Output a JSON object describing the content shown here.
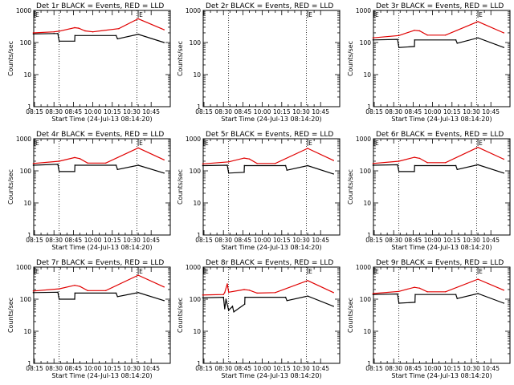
{
  "chart_data": [
    {
      "type": "line",
      "title": "Det 1r BLACK = Events, RED = LLD",
      "xlabel": "Start Time (24-Jul-13 08:14:20)",
      "ylabel": "Counts/sec",
      "yscale": "log",
      "ylim": [
        1,
        1000
      ],
      "xlim": [
        "08:14",
        "10:55"
      ],
      "xticks": [
        "08:15",
        "08:30",
        "08:45",
        "10:00",
        "10:15",
        "10:30",
        "10:45"
      ],
      "yticks": [
        "1",
        "10",
        "100",
        "1000"
      ],
      "vlines": [
        "08:34",
        "10:34"
      ],
      "markers": [
        {
          "x": "08:14",
          "label": "E"
        },
        {
          "x": "10:35",
          "label": "E"
        }
      ],
      "series": [
        {
          "color": "#000000",
          "x": [
            "08:14",
            "08:30",
            "08:33",
            "08:34",
            "08:50",
            "08:51",
            "10:18",
            "10:19",
            "10:35",
            "10:55"
          ],
          "values": [
            185,
            190,
            190,
            110,
            110,
            165,
            165,
            130,
            180,
            100
          ]
        },
        {
          "color": "#e00000",
          "x": [
            "08:14",
            "08:30",
            "08:34",
            "08:50",
            "09:05",
            "09:30",
            "10:00",
            "10:20",
            "10:35",
            "10:55"
          ],
          "values": [
            200,
            215,
            225,
            290,
            280,
            230,
            215,
            270,
            550,
            250
          ]
        }
      ]
    },
    {
      "type": "line",
      "title": "Det 2r BLACK = Events, RED = LLD",
      "xlabel": "Start Time (24-Jul-13 08:14:20)",
      "ylabel": "Counts/sec",
      "yscale": "log",
      "ylim": [
        1,
        1000
      ],
      "xlim": [
        "08:14",
        "10:55"
      ],
      "xticks": [
        "08:15",
        "08:30",
        "08:45",
        "10:00",
        "10:15",
        "10:30",
        "10:45"
      ],
      "yticks": [
        "1",
        "10",
        "100",
        "1000"
      ],
      "vlines": [
        "08:34",
        "10:34"
      ],
      "markers": [
        {
          "x": "10:35",
          "label": "E"
        }
      ],
      "series": []
    },
    {
      "type": "line",
      "title": "Det 3r BLACK = Events, RED = LLD",
      "xlabel": "Start Time (24-Jul-13 08:14:20)",
      "ylabel": "Counts/sec",
      "yscale": "log",
      "ylim": [
        1,
        1000
      ],
      "xlim": [
        "08:14",
        "10:55"
      ],
      "xticks": [
        "08:15",
        "08:30",
        "08:45",
        "10:00",
        "10:15",
        "10:30",
        "10:45"
      ],
      "yticks": [
        "1",
        "10",
        "100",
        "1000"
      ],
      "vlines": [
        "08:34",
        "10:34"
      ],
      "markers": [
        {
          "x": "08:14",
          "label": "E"
        },
        {
          "x": "10:35",
          "label": "E"
        }
      ],
      "series": [
        {
          "color": "#000000",
          "x": [
            "08:14",
            "08:33",
            "08:34",
            "08:50",
            "08:51",
            "10:18",
            "10:19",
            "10:35",
            "10:55"
          ],
          "values": [
            120,
            125,
            70,
            75,
            120,
            120,
            95,
            140,
            70
          ]
        },
        {
          "color": "#e00000",
          "x": [
            "08:14",
            "08:34",
            "08:50",
            "09:10",
            "09:40",
            "10:10",
            "10:35",
            "10:55"
          ],
          "values": [
            140,
            165,
            240,
            230,
            170,
            170,
            450,
            200
          ]
        }
      ]
    },
    {
      "type": "line",
      "title": "Det 4r BLACK = Events, RED = LLD",
      "xlabel": "Start Time (24-Jul-13 08:14:20)",
      "ylabel": "Counts/sec",
      "yscale": "log",
      "ylim": [
        1,
        1000
      ],
      "xlim": [
        "08:14",
        "10:55"
      ],
      "xticks": [
        "08:15",
        "08:30",
        "08:45",
        "10:00",
        "10:15",
        "10:30",
        "10:45"
      ],
      "yticks": [
        "1",
        "10",
        "100",
        "1000"
      ],
      "vlines": [
        "08:34",
        "10:34"
      ],
      "markers": [
        {
          "x": "08:14",
          "label": "E"
        },
        {
          "x": "10:35",
          "label": "E"
        }
      ],
      "series": [
        {
          "color": "#000000",
          "x": [
            "08:14",
            "08:33",
            "08:34",
            "08:50",
            "08:51",
            "10:18",
            "10:19",
            "10:35",
            "10:55"
          ],
          "values": [
            150,
            160,
            95,
            95,
            150,
            150,
            110,
            150,
            85
          ]
        },
        {
          "color": "#e00000",
          "x": [
            "08:14",
            "08:34",
            "08:50",
            "09:10",
            "09:40",
            "10:10",
            "10:35",
            "10:55"
          ],
          "values": [
            170,
            200,
            260,
            240,
            175,
            175,
            520,
            220
          ]
        }
      ]
    },
    {
      "type": "line",
      "title": "Det 5r BLACK = Events, RED = LLD",
      "xlabel": "Start Time (24-Jul-13 08:14:20)",
      "ylabel": "Counts/sec",
      "yscale": "log",
      "ylim": [
        1,
        1000
      ],
      "xlim": [
        "08:14",
        "10:55"
      ],
      "xticks": [
        "08:15",
        "08:30",
        "08:45",
        "10:00",
        "10:15",
        "10:30",
        "10:45"
      ],
      "yticks": [
        "1",
        "10",
        "100",
        "1000"
      ],
      "vlines": [
        "08:34",
        "10:34"
      ],
      "markers": [
        {
          "x": "08:14",
          "label": "E"
        },
        {
          "x": "10:35",
          "label": "E"
        }
      ],
      "series": [
        {
          "color": "#000000",
          "x": [
            "08:14",
            "08:33",
            "08:34",
            "08:50",
            "08:51",
            "10:18",
            "10:19",
            "10:35",
            "10:55"
          ],
          "values": [
            145,
            150,
            85,
            90,
            145,
            145,
            105,
            145,
            80
          ]
        },
        {
          "color": "#e00000",
          "x": [
            "08:14",
            "08:34",
            "08:50",
            "09:10",
            "09:40",
            "10:10",
            "10:35",
            "10:55"
          ],
          "values": [
            165,
            190,
            250,
            235,
            170,
            170,
            500,
            210
          ]
        }
      ]
    },
    {
      "type": "line",
      "title": "Det 6r BLACK = Events, RED = LLD",
      "xlabel": "Start Time (24-Jul-13 08:14:20)",
      "ylabel": "Counts/sec",
      "yscale": "log",
      "ylim": [
        1,
        1000
      ],
      "xlim": [
        "08:14",
        "10:55"
      ],
      "xticks": [
        "08:15",
        "08:30",
        "08:45",
        "10:00",
        "10:15",
        "10:30",
        "10:45"
      ],
      "yticks": [
        "1",
        "10",
        "100",
        "1000"
      ],
      "vlines": [
        "08:34",
        "10:34"
      ],
      "markers": [
        {
          "x": "08:14",
          "label": "E"
        },
        {
          "x": "10:35",
          "label": "E"
        }
      ],
      "series": [
        {
          "color": "#000000",
          "x": [
            "08:14",
            "08:33",
            "08:34",
            "08:50",
            "08:51",
            "10:18",
            "10:19",
            "10:35",
            "10:55"
          ],
          "values": [
            150,
            155,
            95,
            95,
            145,
            145,
            110,
            155,
            85
          ]
        },
        {
          "color": "#e00000",
          "x": [
            "08:14",
            "08:34",
            "08:50",
            "09:10",
            "09:40",
            "10:10",
            "10:35",
            "10:55"
          ],
          "values": [
            170,
            200,
            265,
            245,
            180,
            180,
            540,
            230
          ]
        }
      ]
    },
    {
      "type": "line",
      "title": "Det 7r BLACK = Events, RED = LLD",
      "xlabel": "Start Time (24-Jul-13 08:14:20)",
      "ylabel": "Counts/sec",
      "yscale": "log",
      "ylim": [
        1,
        1000
      ],
      "xlim": [
        "08:14",
        "10:55"
      ],
      "xticks": [
        "08:15",
        "08:30",
        "08:45",
        "10:00",
        "10:15",
        "10:30",
        "10:45"
      ],
      "yticks": [
        "1",
        "10",
        "100",
        "1000"
      ],
      "vlines": [
        "08:34",
        "10:34"
      ],
      "markers": [
        {
          "x": "08:14",
          "label": "E"
        },
        {
          "x": "10:35",
          "label": "E"
        }
      ],
      "series": [
        {
          "color": "#000000",
          "x": [
            "08:14",
            "08:33",
            "08:34",
            "08:50",
            "08:51",
            "10:18",
            "10:19",
            "10:35",
            "10:55"
          ],
          "values": [
            160,
            165,
            100,
            100,
            155,
            155,
            120,
            160,
            90
          ]
        },
        {
          "color": "#e00000",
          "x": [
            "08:14",
            "08:34",
            "08:50",
            "09:10",
            "09:40",
            "10:10",
            "10:35",
            "10:55"
          ],
          "values": [
            180,
            210,
            270,
            250,
            185,
            185,
            560,
            240
          ]
        }
      ]
    },
    {
      "type": "line",
      "title": "Det 8r BLACK = Events, RED = LLD",
      "xlabel": "Start Time (24-Jul-13 08:14:20)",
      "ylabel": "Counts/sec",
      "yscale": "log",
      "ylim": [
        1,
        1000
      ],
      "xlim": [
        "08:14",
        "10:55"
      ],
      "xticks": [
        "08:15",
        "08:30",
        "08:45",
        "10:00",
        "10:15",
        "10:30",
        "10:45"
      ],
      "yticks": [
        "1",
        "10",
        "100",
        "1000"
      ],
      "vlines": [
        "08:34",
        "10:34"
      ],
      "markers": [
        {
          "x": "08:14",
          "label": "E"
        },
        {
          "x": "10:35",
          "label": "E"
        }
      ],
      "series": [
        {
          "color": "#000000",
          "x": [
            "08:14",
            "08:30",
            "08:31",
            "08:32",
            "08:34",
            "08:37",
            "08:38",
            "08:52",
            "08:53",
            "10:18",
            "10:19",
            "10:35",
            "10:55"
          ],
          "values": [
            110,
            115,
            50,
            100,
            45,
            60,
            40,
            70,
            115,
            115,
            90,
            125,
            60
          ]
        },
        {
          "color": "#e00000",
          "x": [
            "08:14",
            "08:30",
            "08:31",
            "08:33",
            "08:34",
            "08:50",
            "09:10",
            "09:40",
            "10:10",
            "10:35",
            "10:55"
          ],
          "values": [
            135,
            140,
            160,
            300,
            165,
            200,
            190,
            155,
            160,
            380,
            160
          ]
        }
      ]
    },
    {
      "type": "line",
      "title": "Det 9r BLACK = Events, RED = LLD",
      "xlabel": "Start Time (24-Jul-13 08:14:20)",
      "ylabel": "Counts/sec",
      "yscale": "log",
      "ylim": [
        1,
        1000
      ],
      "xlim": [
        "08:14",
        "10:55"
      ],
      "xticks": [
        "08:15",
        "08:30",
        "08:45",
        "10:00",
        "10:15",
        "10:30",
        "10:45"
      ],
      "yticks": [
        "1",
        "10",
        "100",
        "1000"
      ],
      "vlines": [
        "08:34",
        "10:34"
      ],
      "markers": [
        {
          "x": "08:14",
          "label": "E"
        },
        {
          "x": "10:35",
          "label": "E"
        }
      ],
      "series": [
        {
          "color": "#000000",
          "x": [
            "08:14",
            "08:33",
            "08:34",
            "08:52",
            "08:53",
            "10:18",
            "10:19",
            "10:35",
            "10:55"
          ],
          "values": [
            140,
            145,
            75,
            80,
            140,
            140,
            105,
            150,
            75
          ]
        },
        {
          "color": "#e00000",
          "x": [
            "08:14",
            "08:34",
            "08:50",
            "09:10",
            "09:40",
            "10:10",
            "10:35",
            "10:55"
          ],
          "values": [
            150,
            175,
            235,
            220,
            170,
            170,
            420,
            190
          ]
        }
      ]
    }
  ]
}
